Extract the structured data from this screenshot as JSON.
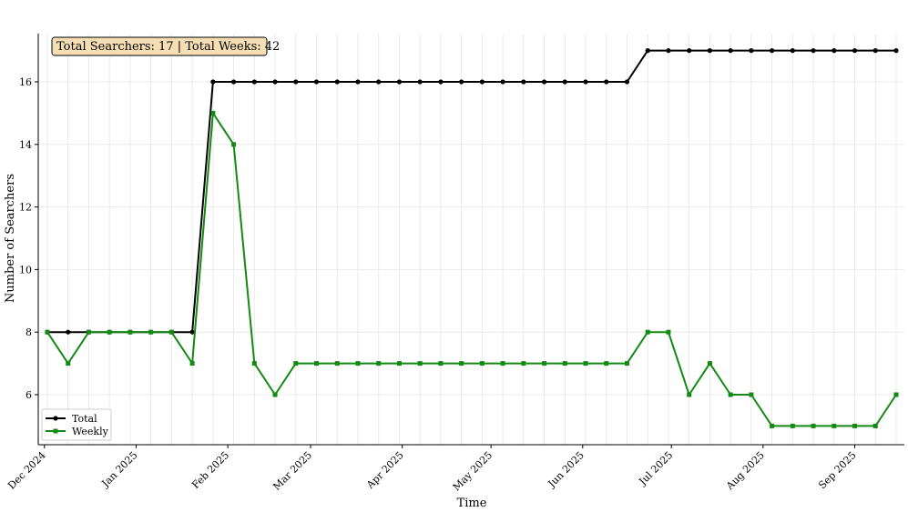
{
  "chart_data": {
    "type": "line",
    "xlabel": "Time",
    "ylabel": "Number of Searchers",
    "annotation": "Total Searchers: 17 | Total Weeks: 42",
    "x_tick_labels": [
      "Dec 2024",
      "Jan 2025",
      "Feb 2025",
      "Mar 2025",
      "Apr 2025",
      "May 2025",
      "Jun 2025",
      "Jul 2025",
      "Aug 2025",
      "Sep 2025"
    ],
    "y_ticks": [
      6,
      8,
      10,
      12,
      14,
      16
    ],
    "ylim": [
      4.5,
      17.7
    ],
    "grid": true,
    "legend_position": "lower-left",
    "x": [
      "2024-12-02",
      "2024-12-09",
      "2024-12-16",
      "2024-12-23",
      "2024-12-30",
      "2025-01-06",
      "2025-01-13",
      "2025-01-20",
      "2025-01-27",
      "2025-02-03",
      "2025-02-10",
      "2025-02-17",
      "2025-02-24",
      "2025-03-03",
      "2025-03-10",
      "2025-03-17",
      "2025-03-24",
      "2025-03-31",
      "2025-04-07",
      "2025-04-14",
      "2025-04-21",
      "2025-04-28",
      "2025-05-05",
      "2025-05-12",
      "2025-05-19",
      "2025-05-26",
      "2025-06-02",
      "2025-06-09",
      "2025-06-16",
      "2025-06-23",
      "2025-06-30",
      "2025-07-07",
      "2025-07-14",
      "2025-07-21",
      "2025-07-28",
      "2025-08-04",
      "2025-08-11",
      "2025-08-18",
      "2025-08-25",
      "2025-09-01",
      "2025-09-08",
      "2025-09-15"
    ],
    "series": [
      {
        "name": "Total",
        "color": "#000000",
        "marker": "circle",
        "values": [
          8,
          8,
          8,
          8,
          8,
          8,
          8,
          8,
          16,
          16,
          16,
          16,
          16,
          16,
          16,
          16,
          16,
          16,
          16,
          16,
          16,
          16,
          16,
          16,
          16,
          16,
          16,
          16,
          16,
          17,
          17,
          17,
          17,
          17,
          17,
          17,
          17,
          17,
          17,
          17,
          17,
          17
        ]
      },
      {
        "name": "Weekly",
        "color": "#138a13",
        "marker": "square",
        "values": [
          8,
          7,
          8,
          8,
          8,
          8,
          8,
          7,
          15,
          14,
          7,
          6,
          7,
          7,
          7,
          7,
          7,
          7,
          7,
          7,
          7,
          7,
          7,
          7,
          7,
          7,
          7,
          7,
          7,
          8,
          8,
          6,
          7,
          6,
          6,
          5,
          5,
          5,
          5,
          5,
          5,
          6
        ]
      }
    ]
  }
}
